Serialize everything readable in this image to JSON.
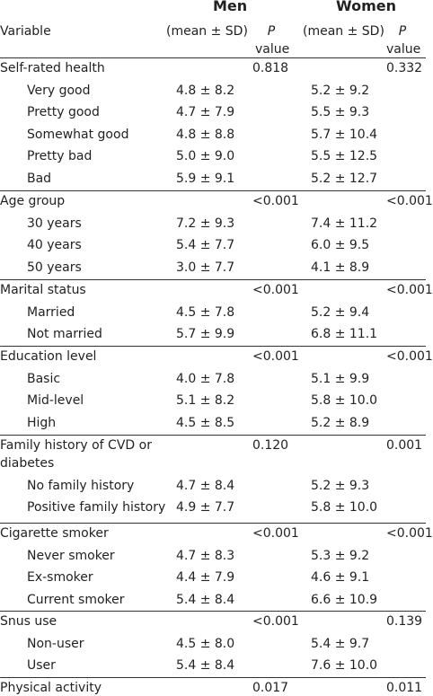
{
  "header": {
    "men": "Men",
    "women": "Women",
    "variable": "Variable",
    "stat_men": "(mean ± SD)",
    "stat_women": "(mean ± SD)",
    "p_italic": "P",
    "p_word": "value"
  },
  "rows": [
    {
      "label": "Self-rated health",
      "men": "",
      "p_men": "0.818",
      "women": "",
      "p_women": "0.332",
      "sub": false,
      "rule": true
    },
    {
      "label": "Very good",
      "men": "4.8 ± 8.2",
      "p_men": "",
      "women": "5.2 ± 9.2",
      "p_women": "",
      "sub": true
    },
    {
      "label": "Pretty good",
      "men": "4.7 ± 7.9",
      "p_men": "",
      "women": "5.5 ± 9.3",
      "p_women": "",
      "sub": true
    },
    {
      "label": "Somewhat good",
      "men": "4.8 ± 8.8",
      "p_men": "",
      "women": "5.7 ± 10.4",
      "p_women": "",
      "sub": true
    },
    {
      "label": "Pretty bad",
      "men": "5.0 ± 9.0",
      "p_men": "",
      "women": "5.5 ± 12.5",
      "p_women": "",
      "sub": true
    },
    {
      "label": "Bad",
      "men": "5.9 ± 9.1",
      "p_men": "",
      "women": "5.2 ± 12.7",
      "p_women": "",
      "sub": true
    },
    {
      "label": "Age group",
      "men": "",
      "p_men": "<0.001",
      "women": "",
      "p_women": "<0.001",
      "sub": false,
      "rule": true
    },
    {
      "label": "30 years",
      "men": "7.2 ± 9.3",
      "p_men": "",
      "women": "7.4 ± 11.2",
      "p_women": "",
      "sub": true
    },
    {
      "label": "40 years",
      "men": "5.4 ± 7.7",
      "p_men": "",
      "women": "6.0 ± 9.5",
      "p_women": "",
      "sub": true
    },
    {
      "label": "50 years",
      "men": "3.0 ± 7.7",
      "p_men": "",
      "women": "4.1 ± 8.9",
      "p_women": "",
      "sub": true
    },
    {
      "label": "Marital status",
      "men": "",
      "p_men": "<0.001",
      "women": "",
      "p_women": "<0.001",
      "sub": false,
      "rule": true
    },
    {
      "label": "Married",
      "men": "4.5 ± 7.8",
      "p_men": "",
      "women": "5.2 ± 9.4",
      "p_women": "",
      "sub": true
    },
    {
      "label": "Not married",
      "men": "5.7 ± 9.9",
      "p_men": "",
      "women": "6.8 ± 11.1",
      "p_women": "",
      "sub": true
    },
    {
      "label": "Education level",
      "men": "",
      "p_men": "<0.001",
      "women": "",
      "p_women": "<0.001",
      "sub": false,
      "rule": true
    },
    {
      "label": "Basic",
      "men": "4.0 ± 7.8",
      "p_men": "",
      "women": "5.1 ± 9.9",
      "p_women": "",
      "sub": true
    },
    {
      "label": "Mid-level",
      "men": "5.1 ± 8.2",
      "p_men": "",
      "women": "5.8 ± 10.0",
      "p_women": "",
      "sub": true
    },
    {
      "label": "High",
      "men": "4.5 ± 8.5",
      "p_men": "",
      "women": "5.2 ± 8.9",
      "p_women": "",
      "sub": true
    },
    {
      "label": "Family history of CVD or",
      "label2": "diabetes",
      "men": "",
      "p_men": "0.120",
      "women": "",
      "p_women": "0.001",
      "sub": false,
      "rule": true
    },
    {
      "label": "No family history",
      "men": "4.7 ± 8.4",
      "p_men": "",
      "women": "5.2 ± 9.3",
      "p_women": "",
      "sub": true
    },
    {
      "label": "Positive family history",
      "men": "4.9 ± 7.7",
      "p_men": "",
      "women": "5.8 ± 10.0",
      "p_women": "",
      "sub": true
    },
    {
      "label": "Cigarette smoker",
      "men": "",
      "p_men": "<0.001",
      "women": "",
      "p_women": "<0.001",
      "sub": false,
      "rule": true
    },
    {
      "label": "Never smoker",
      "men": "4.7 ± 8.3",
      "p_men": "",
      "women": "5.3 ± 9.2",
      "p_women": "",
      "sub": true
    },
    {
      "label": "Ex-smoker",
      "men": "4.4 ± 7.9",
      "p_men": "",
      "women": "4.6 ± 9.1",
      "p_women": "",
      "sub": true
    },
    {
      "label": "Current smoker",
      "men": "5.4 ± 8.4",
      "p_men": "",
      "women": "6.6 ± 10.9",
      "p_women": "",
      "sub": true
    },
    {
      "label": "Snus use",
      "men": "",
      "p_men": "<0.001",
      "women": "",
      "p_women": "0.139",
      "sub": false,
      "rule": true
    },
    {
      "label": "Non-user",
      "men": "4.5 ± 8.0",
      "p_men": "",
      "women": "5.4 ± 9.7",
      "p_women": "",
      "sub": true
    },
    {
      "label": "User",
      "men": "5.4 ± 8.4",
      "p_men": "",
      "women": "7.6 ± 10.0",
      "p_women": "",
      "sub": true
    },
    {
      "label": "Physical activity",
      "men": "",
      "p_men": "0.017",
      "women": "",
      "p_women": "0.011",
      "sub": false,
      "rule": true
    }
  ]
}
